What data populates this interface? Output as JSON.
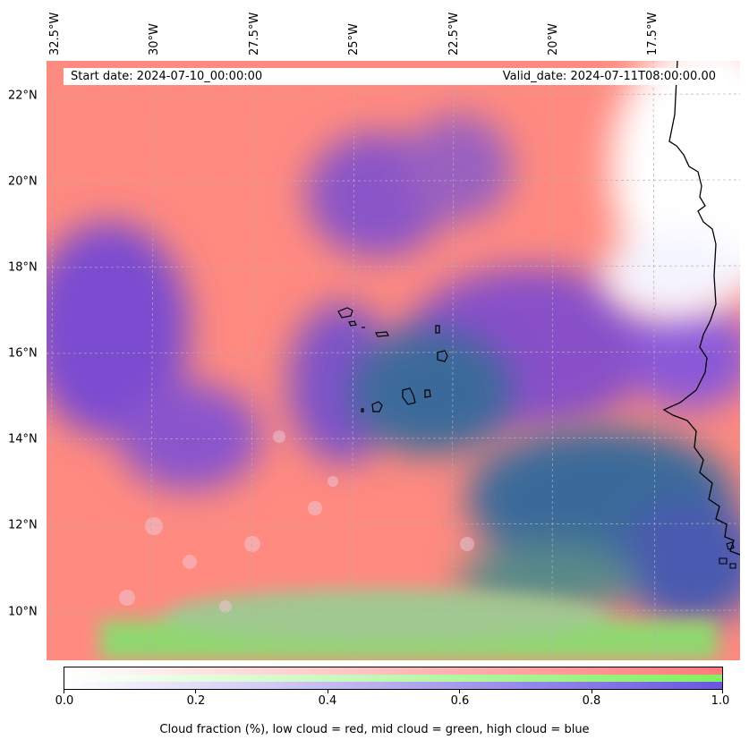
{
  "map": {
    "start_date": "Start date: 2024-07-10_00:00:00",
    "valid_date": "Valid_date: 2024-07-11T08:00:00.00",
    "longitude_labels": [
      "32.5°W",
      "30°W",
      "27.5°W",
      "25°W",
      "22.5°W",
      "20°W",
      "17.5°W"
    ],
    "latitude_labels": [
      "22°N",
      "20°N",
      "18°N",
      "16°N",
      "14°N",
      "12°N",
      "10°N"
    ],
    "gridlines": "dashed",
    "region": "Cabo Verde and West African coast"
  },
  "colorbar": {
    "ticks": [
      "0.0",
      "0.2",
      "0.4",
      "0.6",
      "0.8",
      "1.0"
    ],
    "caption": "Cloud fraction (%), low cloud = red, mid cloud = green, high cloud = blue",
    "colors": {
      "low": "#ff7a7a",
      "mid": "#80f060",
      "high": "#6a56e0"
    }
  }
}
